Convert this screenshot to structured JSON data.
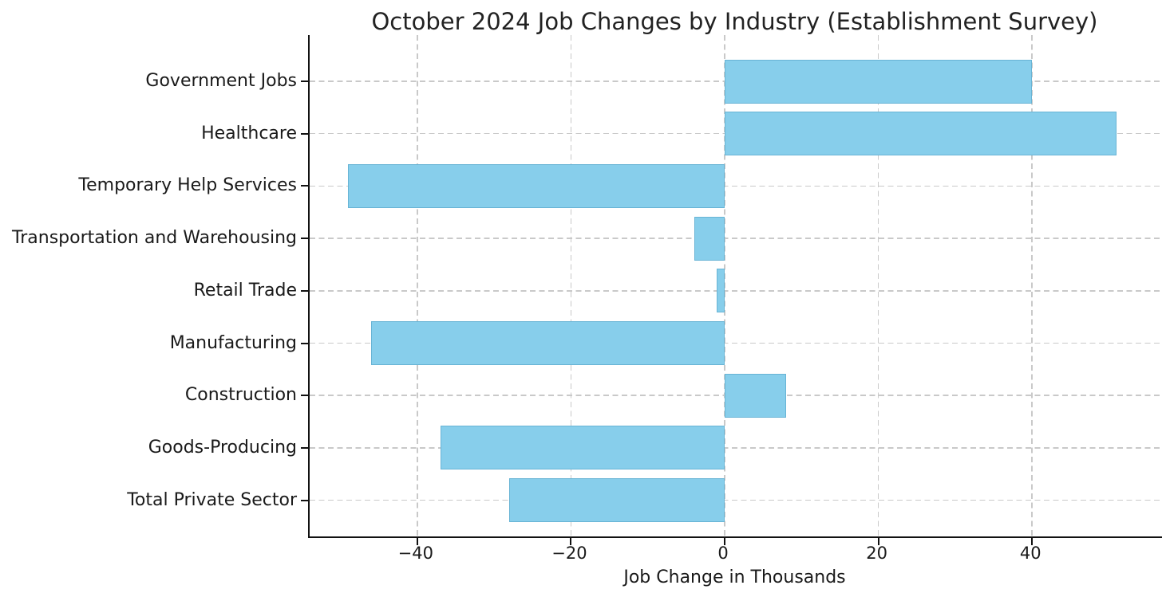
{
  "chart_data": {
    "type": "bar",
    "orientation": "horizontal",
    "title": "October 2024 Job Changes by Industry (Establishment Survey)",
    "xlabel": "Job Change in Thousands",
    "ylabel": "",
    "categories": [
      "Government Jobs",
      "Healthcare",
      "Temporary Help Services",
      "Transportation and Warehousing",
      "Retail Trade",
      "Manufacturing",
      "Construction",
      "Goods-Producing",
      "Total Private Sector"
    ],
    "values": [
      40,
      51,
      -49,
      -4,
      -1,
      -46,
      8,
      -37,
      -28
    ],
    "xticks": [
      -40,
      -20,
      0,
      20,
      40
    ],
    "xtick_labels": [
      "−40",
      "−20",
      "0",
      "20",
      "40"
    ],
    "xlim": [
      -54,
      57
    ],
    "grid": true,
    "legend": "none",
    "colors": {
      "bar_fill": "#87CEEB",
      "bar_edge": "#54a4c7",
      "grid": "#c9c9c9",
      "axis": "#111111",
      "text": "#1a1a1a"
    }
  }
}
